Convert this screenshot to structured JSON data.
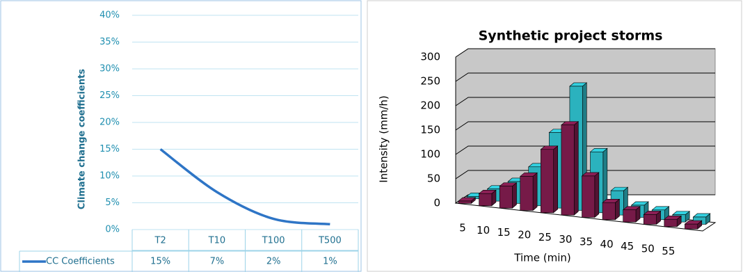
{
  "chart_data": [
    {
      "type": "line",
      "ylabel": "Climate change coefficients",
      "categories": [
        "T2",
        "T10",
        "T100",
        "T500"
      ],
      "series": [
        {
          "name": "CC Coefficients",
          "color": "#2e75c6",
          "values": [
            15,
            7,
            2,
            1
          ],
          "value_labels": [
            "15%",
            "7%",
            "2%",
            "1%"
          ]
        }
      ],
      "ylim": [
        0,
        40
      ],
      "yticks": [
        {
          "value": 0,
          "label": "0%"
        },
        {
          "value": 5,
          "label": "5%"
        },
        {
          "value": 10,
          "label": "10%"
        },
        {
          "value": 15,
          "label": "15%"
        },
        {
          "value": 20,
          "label": "20%"
        },
        {
          "value": 25,
          "label": "25%"
        },
        {
          "value": 30,
          "label": "30%"
        },
        {
          "value": 35,
          "label": "35%"
        },
        {
          "value": 40,
          "label": "40%"
        }
      ],
      "grid": true
    },
    {
      "type": "bar3d",
      "title": "Synthetic project storms",
      "xlabel": "Time (min)",
      "ylabel": "Intensity (mm/h)",
      "categories": [
        "5",
        "10",
        "15",
        "20",
        "25",
        "30",
        "35",
        "40",
        "45",
        "50",
        "55",
        null
      ],
      "series": [
        {
          "color": "#33d1e0",
          "values": [
            5,
            25,
            45,
            80,
            155,
            255,
            125,
            50,
            25,
            20,
            15,
            15
          ]
        },
        {
          "color": "#8b1f55",
          "values": [
            5,
            25,
            45,
            70,
            130,
            185,
            85,
            35,
            25,
            20,
            15,
            10
          ]
        }
      ],
      "ylim": [
        0,
        300
      ],
      "yticks": [
        0,
        50,
        100,
        150,
        200,
        250,
        300
      ],
      "grid": true
    }
  ]
}
